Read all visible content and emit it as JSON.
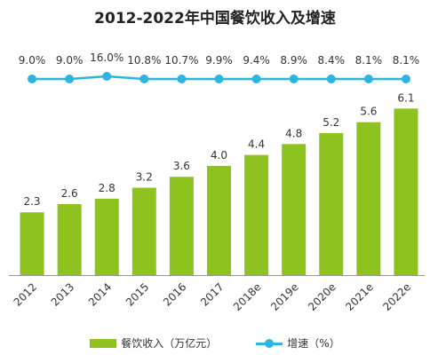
{
  "title": "2012-2022年中国餐饮收入及增速",
  "colors": {
    "bar": "#8dc21f",
    "line": "#2db4e0",
    "axis": "#999999",
    "label": "#333333"
  },
  "legend": {
    "bar_label": "餐饮收入（万亿元）",
    "line_label": "增速（%）"
  },
  "chart_data": {
    "type": "bar",
    "categories": [
      "2012",
      "2013",
      "2014",
      "2015",
      "2016",
      "2017",
      "2018e",
      "2019e",
      "2020e",
      "2021e",
      "2022e"
    ],
    "series": [
      {
        "name": "餐饮收入（万亿元）",
        "type": "bar",
        "values": [
          2.3,
          2.6,
          2.8,
          3.2,
          3.6,
          4.0,
          4.4,
          4.8,
          5.2,
          5.6,
          6.1
        ]
      },
      {
        "name": "增速（%）",
        "type": "line",
        "values": [
          9.0,
          9.0,
          16.0,
          10.8,
          10.7,
          9.9,
          9.4,
          8.9,
          8.4,
          8.1,
          8.1
        ]
      }
    ],
    "value_labels_bar": [
      "2.3",
      "2.6",
      "2.8",
      "3.2",
      "3.6",
      "4.0",
      "4.4",
      "4.8",
      "5.2",
      "5.6",
      "6.1"
    ],
    "value_labels_line": [
      "9.0%",
      "9.0%",
      "16.0%",
      "10.8%",
      "10.7%",
      "9.9%",
      "9.4%",
      "8.9%",
      "8.4%",
      "8.1%",
      "8.1%"
    ],
    "ylim_bar": [
      0,
      6.5
    ],
    "grid": false,
    "legend_position": "bottom"
  }
}
